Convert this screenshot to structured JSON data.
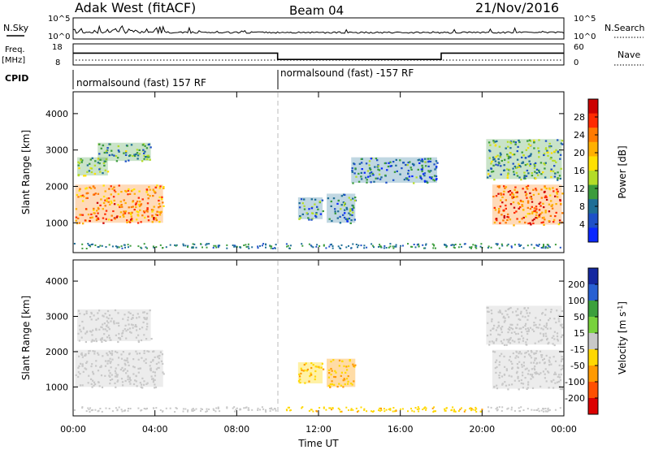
{
  "header": {
    "station": "Adak West (fitACF)",
    "beam": "Beam 04",
    "date": "21/Nov/2016"
  },
  "strip_labels": {
    "nsky": "N.Sky",
    "nsearch": "N.Search",
    "freq_line1": "Freq.",
    "freq_line2": "[MHz]",
    "nave": "Nave",
    "cpid": "CPID",
    "nsky_ticks": [
      "10^5",
      "10^0"
    ],
    "nsearch_ticks": [
      "10^5",
      "10^0"
    ],
    "freq_ticks": [
      "18",
      "8"
    ],
    "nave_ticks": [
      "60",
      "0"
    ]
  },
  "cpid_segments": [
    {
      "start_hour": 0,
      "end_hour": 10,
      "label": "normalsound (fast) 157 RF"
    },
    {
      "start_hour": 10,
      "end_hour": 24,
      "label": "normalsound (fast) -157 RF"
    }
  ],
  "freq_trace": {
    "hours": [
      0,
      10,
      10,
      18,
      18,
      24
    ],
    "freq_mhz": [
      13.6,
      13.6,
      10.6,
      10.6,
      13.6,
      13.6
    ]
  },
  "power_colorbar": {
    "label": "Power [dB]",
    "ticks": [
      "28",
      "24",
      "20",
      "16",
      "12",
      "8",
      "4"
    ],
    "colors": [
      "#cc0000",
      "#ff2a00",
      "#ff7a00",
      "#ffb000",
      "#ffe000",
      "#b4dc28",
      "#3c9c3c",
      "#1e6e96",
      "#1e50c8",
      "#0a28ff"
    ]
  },
  "velocity_colorbar": {
    "label_parts": [
      "Velocity [m s",
      "-1",
      "]"
    ],
    "ticks": [
      "200",
      "100",
      "50",
      "15",
      "-15",
      "-50",
      "-100",
      "-200"
    ],
    "colors": [
      "#1428a0",
      "#2860d2",
      "#3ca03c",
      "#78d23c",
      "#c8c8c8",
      "#ffd800",
      "#ff9a00",
      "#ff5000",
      "#dc0000"
    ]
  },
  "axes": {
    "ylabel": "Slant Range [km]",
    "yticks": [
      "4000",
      "3000",
      "2000",
      "1000"
    ],
    "xticks": [
      "00:00",
      "04:00",
      "08:00",
      "12:00",
      "16:00",
      "20:00",
      "00:00"
    ],
    "xlabel": "Time UT"
  },
  "chart_data": {
    "type": "heatmap",
    "x_range_hours": [
      0,
      24
    ],
    "y_range_km": [
      180,
      4600
    ],
    "power_regions": [
      {
        "t0": 0.1,
        "t1": 4.4,
        "r0": 1000,
        "r1": 2050,
        "power_db": 24
      },
      {
        "t0": 0.2,
        "t1": 1.7,
        "r0": 2300,
        "r1": 2800,
        "power_db": 12
      },
      {
        "t0": 1.2,
        "t1": 3.8,
        "r0": 2700,
        "r1": 3200,
        "power_db": 10
      },
      {
        "t0": 11.0,
        "t1": 12.2,
        "r0": 1100,
        "r1": 1700,
        "power_db": 8
      },
      {
        "t0": 12.4,
        "t1": 13.8,
        "r0": 1000,
        "r1": 1800,
        "power_db": 8
      },
      {
        "t0": 13.6,
        "t1": 17.8,
        "r0": 2100,
        "r1": 2800,
        "power_db": 6
      },
      {
        "t0": 20.5,
        "t1": 23.9,
        "r0": 950,
        "r1": 2050,
        "power_db": 26
      },
      {
        "t0": 20.2,
        "t1": 23.9,
        "r0": 2200,
        "r1": 3300,
        "power_db": 10
      }
    ],
    "velocity_regions": [
      {
        "t0": 0.1,
        "t1": 4.4,
        "r0": 1000,
        "r1": 2050,
        "velocity": 0
      },
      {
        "t0": 0.2,
        "t1": 3.8,
        "r0": 2300,
        "r1": 3200,
        "velocity": 0
      },
      {
        "t0": 11.0,
        "t1": 12.2,
        "r0": 1100,
        "r1": 1700,
        "velocity": -60
      },
      {
        "t0": 12.4,
        "t1": 13.8,
        "r0": 1000,
        "r1": 1800,
        "velocity": -80
      },
      {
        "t0": 20.5,
        "t1": 23.9,
        "r0": 950,
        "r1": 2050,
        "velocity": 0
      },
      {
        "t0": 20.2,
        "t1": 23.9,
        "r0": 2200,
        "r1": 3300,
        "velocity": 0
      }
    ],
    "cpid_change_hour": 10
  }
}
